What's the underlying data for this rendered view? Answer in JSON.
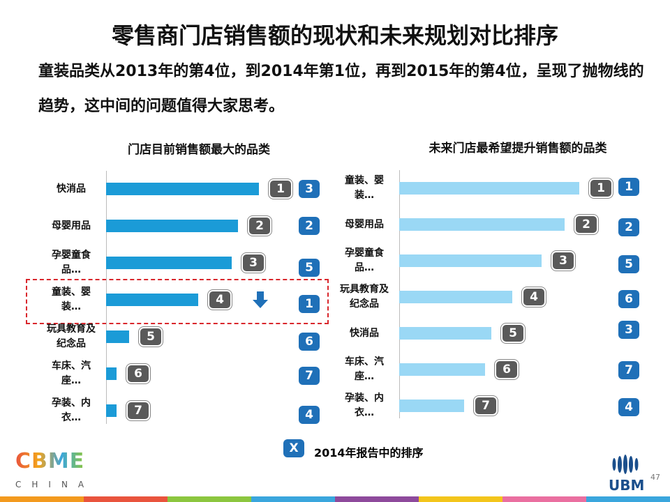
{
  "title": "零售商门店销售额的现状和未来规划对比排序",
  "subtitle": "童装品类从2013年的第4位，到2014年第1位，再到2015年的第4位，呈现了抛物线的趋势，这中间的问题值得大家思考。",
  "chart_data": [
    {
      "type": "bar",
      "title": "门店目前销售额最大的品类",
      "categories": [
        "快消品",
        "母婴用品",
        "孕婴童食品…",
        "童装、婴装…",
        "玩具教育及纪念品",
        "车床、汽座…",
        "孕装、内衣…"
      ],
      "values": [
        73,
        63,
        60,
        44,
        11,
        5,
        5
      ],
      "xlim": [
        0,
        100
      ],
      "color": "#1b9bd7",
      "ranks": [
        1,
        2,
        3,
        4,
        5,
        6,
        7
      ],
      "ranks_2014": [
        3,
        2,
        5,
        1,
        6,
        7,
        4
      ]
    },
    {
      "type": "bar",
      "title": "未来门店最希望提升销售额的品类",
      "categories": [
        "童装、婴装…",
        "母婴用品",
        "孕婴童食品…",
        "玩具教育及纪念品",
        "快消品",
        "车床、汽座…",
        "孕装、内衣…"
      ],
      "values": [
        86,
        79,
        68,
        54,
        44,
        41,
        31
      ],
      "xlim": [
        0,
        100
      ],
      "color": "#9ad8f5",
      "ranks": [
        1,
        2,
        3,
        4,
        5,
        6,
        7
      ],
      "ranks_2014": [
        1,
        2,
        5,
        6,
        3,
        7,
        4
      ]
    }
  ],
  "legend": {
    "badge": "X",
    "label": "2014年报告中的排序"
  },
  "footer": {
    "logo": "CBME",
    "logo_sub": "CHINA",
    "brand": "UBM",
    "page": 47
  }
}
